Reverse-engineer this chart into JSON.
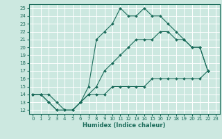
{
  "xlabel": "Humidex (Indice chaleur)",
  "bg_color": "#cce8e0",
  "grid_color": "#ffffff",
  "line_color": "#1a6b5a",
  "xlim": [
    -0.5,
    23.5
  ],
  "ylim": [
    11.5,
    25.5
  ],
  "xticks": [
    0,
    1,
    2,
    3,
    4,
    5,
    6,
    7,
    8,
    9,
    10,
    11,
    12,
    13,
    14,
    15,
    16,
    17,
    18,
    19,
    20,
    21,
    22,
    23
  ],
  "yticks": [
    12,
    13,
    14,
    15,
    16,
    17,
    18,
    19,
    20,
    21,
    22,
    23,
    24,
    25
  ],
  "series1": [
    [
      0,
      14
    ],
    [
      1,
      14
    ],
    [
      2,
      14
    ],
    [
      3,
      13
    ],
    [
      4,
      12
    ],
    [
      5,
      12
    ],
    [
      6,
      13
    ],
    [
      7,
      15
    ],
    [
      8,
      21
    ],
    [
      9,
      22
    ],
    [
      10,
      23
    ],
    [
      11,
      25
    ],
    [
      12,
      24
    ],
    [
      13,
      24
    ],
    [
      14,
      25
    ],
    [
      15,
      24
    ],
    [
      16,
      24
    ],
    [
      17,
      23
    ],
    [
      18,
      22
    ],
    [
      19,
      21
    ],
    [
      20,
      20
    ],
    [
      21,
      20
    ],
    [
      22,
      17
    ]
  ],
  "series2": [
    [
      0,
      14
    ],
    [
      1,
      14
    ],
    [
      2,
      13
    ],
    [
      3,
      12
    ],
    [
      4,
      12
    ],
    [
      5,
      12
    ],
    [
      6,
      13
    ],
    [
      7,
      14
    ],
    [
      8,
      15
    ],
    [
      9,
      17
    ],
    [
      10,
      18
    ],
    [
      11,
      19
    ],
    [
      12,
      20
    ],
    [
      13,
      21
    ],
    [
      14,
      21
    ],
    [
      15,
      21
    ],
    [
      16,
      22
    ],
    [
      17,
      22
    ],
    [
      18,
      21
    ],
    [
      19,
      21
    ],
    [
      20,
      20
    ],
    [
      21,
      20
    ],
    [
      22,
      17
    ]
  ],
  "series3": [
    [
      0,
      14
    ],
    [
      1,
      14
    ],
    [
      2,
      13
    ],
    [
      3,
      12
    ],
    [
      4,
      12
    ],
    [
      5,
      12
    ],
    [
      6,
      13
    ],
    [
      7,
      14
    ],
    [
      8,
      14
    ],
    [
      9,
      14
    ],
    [
      10,
      15
    ],
    [
      11,
      15
    ],
    [
      12,
      15
    ],
    [
      13,
      15
    ],
    [
      14,
      15
    ],
    [
      15,
      16
    ],
    [
      16,
      16
    ],
    [
      17,
      16
    ],
    [
      18,
      16
    ],
    [
      19,
      16
    ],
    [
      20,
      16
    ],
    [
      21,
      16
    ],
    [
      22,
      17
    ]
  ]
}
